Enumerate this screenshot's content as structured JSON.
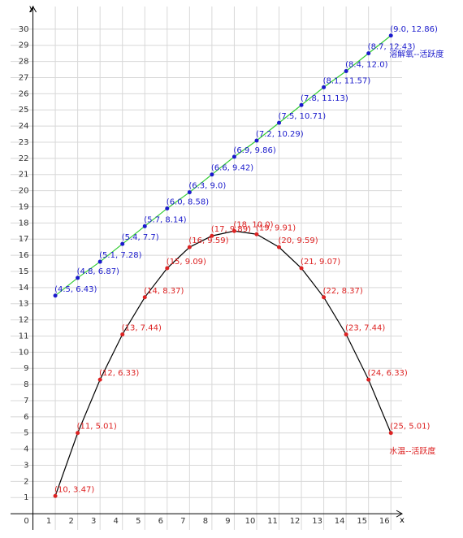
{
  "chart_data": {
    "type": "line",
    "x_label": "x",
    "y_label": "y",
    "xlim": [
      -1,
      16.5
    ],
    "ylim": [
      -1,
      31.4
    ],
    "xticks": [
      0,
      1,
      2,
      3,
      4,
      5,
      6,
      7,
      8,
      9,
      10,
      11,
      12,
      13,
      14,
      15,
      16
    ],
    "yticks": [
      1,
      2,
      3,
      4,
      5,
      6,
      7,
      8,
      9,
      10,
      11,
      12,
      13,
      14,
      15,
      16,
      17,
      18,
      19,
      20,
      21,
      22,
      23,
      24,
      25,
      26,
      27,
      28,
      29,
      30
    ],
    "grid": true,
    "series": [
      {
        "name": "溶解氧--活跃度",
        "color": "#33cc33",
        "marker_color": "#1a1acc",
        "x": [
          1,
          2,
          3,
          4,
          5,
          6,
          7,
          8,
          9,
          10,
          11,
          12,
          13,
          14,
          15,
          16
        ],
        "values": [
          13.5,
          14.6,
          15.6,
          16.7,
          17.8,
          18.9,
          19.9,
          21.0,
          22.1,
          23.1,
          24.2,
          25.3,
          26.4,
          27.4,
          28.5,
          29.6
        ],
        "point_labels": [
          "(4.5, 6.43)",
          "(4.8, 6.87)",
          "(5.1, 7.28)",
          "(5.4, 7.7)",
          "(5.7, 8.14)",
          "(6.0, 8.58)",
          "(6.3, 9.0)",
          "(6.6, 9.42)",
          "(6.9, 9.86)",
          "(7.2, 10.29)",
          "(7.5, 10.71)",
          "(7.8, 11.13)",
          "(8.1, 11.57)",
          "(8.4, 12.0)",
          "(8.7, 12.43)",
          "(9.0, 12.86)"
        ]
      },
      {
        "name": "水温--活跃度",
        "color": "#000000",
        "marker_color": "#dd2222",
        "x": [
          1,
          2,
          3,
          4,
          5,
          6,
          7,
          8,
          9,
          10,
          11,
          12,
          13,
          14,
          15,
          16
        ],
        "values": [
          1.1,
          5.0,
          8.3,
          11.1,
          13.4,
          15.2,
          16.5,
          17.2,
          17.5,
          17.3,
          16.5,
          15.2,
          13.4,
          11.1,
          8.3,
          5.0
        ],
        "point_labels": [
          "(10, 3.47)",
          "(11, 5.01)",
          "(12, 6.33)",
          "(13, 7.44)",
          "(14, 8.37)",
          "(15, 9.09)",
          "(16, 9.59)",
          "(17, 9.89)",
          "(18, 10.0)",
          "(19, 9.91)",
          "(20, 9.59)",
          "(21, 9.07)",
          "(22, 8.37)",
          "(23, 7.44)",
          "(24, 6.33)",
          "(25, 5.01)"
        ]
      }
    ]
  }
}
